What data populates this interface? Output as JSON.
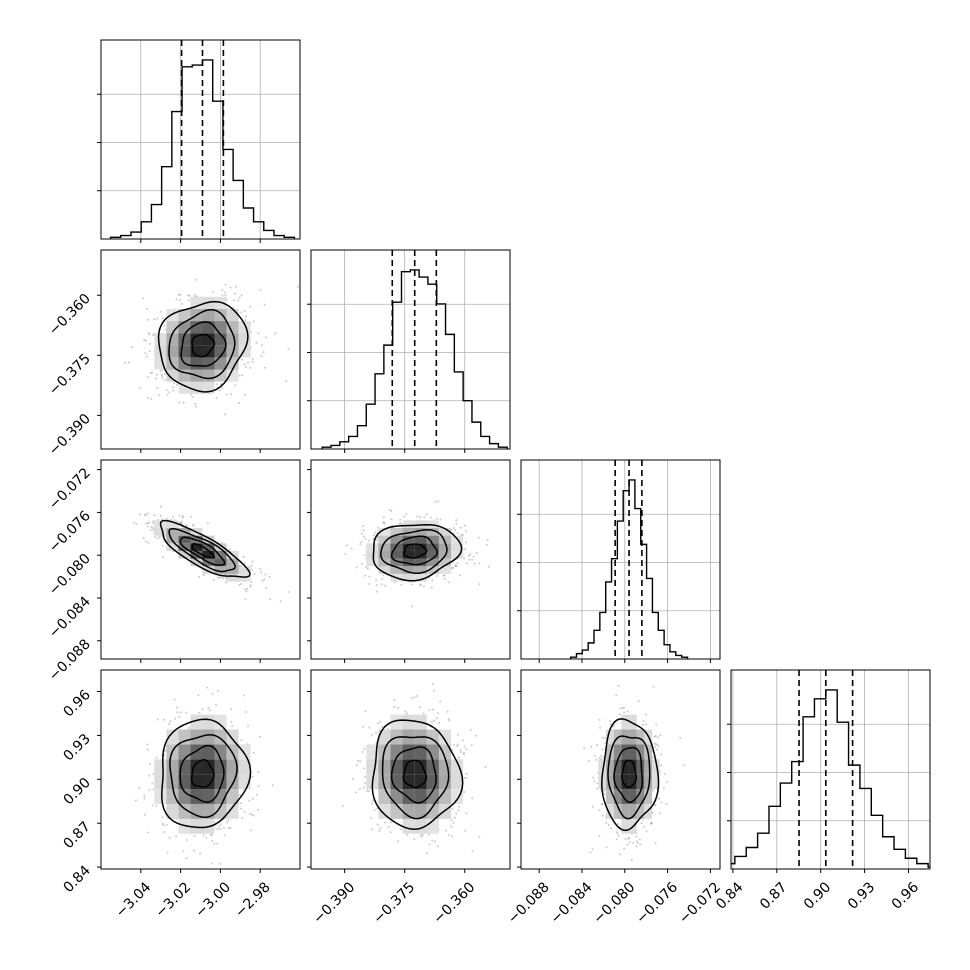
{
  "colors": {
    "background": "#ffffff",
    "frame": "#000000",
    "grid": "#b0b0b0",
    "contour": "#000000",
    "quantile": "#000000",
    "scatter": "#8a8a8a"
  },
  "chart_data": {
    "type": "corner",
    "params": [
      {
        "mean": -3.009,
        "sd": 0.011,
        "range": [
          -3.06,
          -2.96
        ],
        "ticks": [
          -3.04,
          -3.02,
          -3.0,
          -2.98
        ],
        "tick_labels": [
          "−3.04",
          "−3.02",
          "−3.00",
          "−2.98"
        ],
        "quantiles": [
          -3.0195,
          -3.009,
          -2.9985
        ]
      },
      {
        "mean": -0.3725,
        "sd": 0.0055,
        "range": [
          -0.3984,
          -0.3487
        ],
        "ticks": [
          -0.39,
          -0.375,
          -0.36
        ],
        "tick_labels": [
          "−0.390",
          "−0.375",
          "−0.360"
        ],
        "quantiles": [
          -0.3781,
          -0.3725,
          -0.3671
        ]
      },
      {
        "mean": -0.0796,
        "sd": 0.0013,
        "range": [
          -0.0897,
          -0.0711
        ],
        "ticks": [
          -0.088,
          -0.084,
          -0.08,
          -0.076,
          -0.072
        ],
        "tick_labels": [
          "−0.088",
          "−0.084",
          "−0.080",
          "−0.076",
          "−0.072"
        ],
        "quantiles": [
          -0.0809,
          -0.0796,
          -0.0784
        ]
      },
      {
        "mean": 0.9035,
        "sd": 0.0185,
        "range": [
          0.8387,
          0.9747
        ],
        "ticks": [
          0.84,
          0.87,
          0.9,
          0.93,
          0.96
        ],
        "tick_labels": [
          "0.84",
          "0.87",
          "0.90",
          "0.93",
          "0.96"
        ],
        "quantiles": [
          0.8852,
          0.9035,
          0.9218
        ]
      }
    ],
    "histograms": [
      {
        "param": 0,
        "counts": [
          1,
          2,
          4,
          10,
          20,
          42,
          74,
          100,
          101,
          104,
          80,
          52,
          34,
          18,
          10,
          5,
          2,
          1
        ]
      },
      {
        "param": 1,
        "counts": [
          1,
          2,
          4,
          7,
          13,
          25,
          42,
          58,
          82,
          99,
          100,
          96,
          92,
          81,
          64,
          43,
          27,
          15,
          7,
          3,
          1
        ]
      },
      {
        "param": 2,
        "counts": [
          1,
          3,
          5,
          9,
          16,
          26,
          43,
          56,
          77,
          94,
          100,
          84,
          64,
          45,
          26,
          16,
          8,
          4,
          2,
          1
        ]
      },
      {
        "param": 3,
        "counts": [
          1,
          3,
          7,
          12,
          20,
          35,
          48,
          60,
          85,
          95,
          100,
          82,
          58,
          45,
          30,
          18,
          11,
          6,
          3,
          1
        ]
      }
    ],
    "pairs": [
      {
        "row": 1,
        "col": 0,
        "correlation": 0.1
      },
      {
        "row": 2,
        "col": 0,
        "correlation": -0.8
      },
      {
        "row": 2,
        "col": 1,
        "correlation": 0.1
      },
      {
        "row": 3,
        "col": 0,
        "correlation": 0.05
      },
      {
        "row": 3,
        "col": 1,
        "correlation": -0.05
      },
      {
        "row": 3,
        "col": 2,
        "correlation": 0.0
      }
    ],
    "contour_levels": [
      0.5,
      1.0,
      1.5,
      2.0
    ],
    "grid": true
  }
}
